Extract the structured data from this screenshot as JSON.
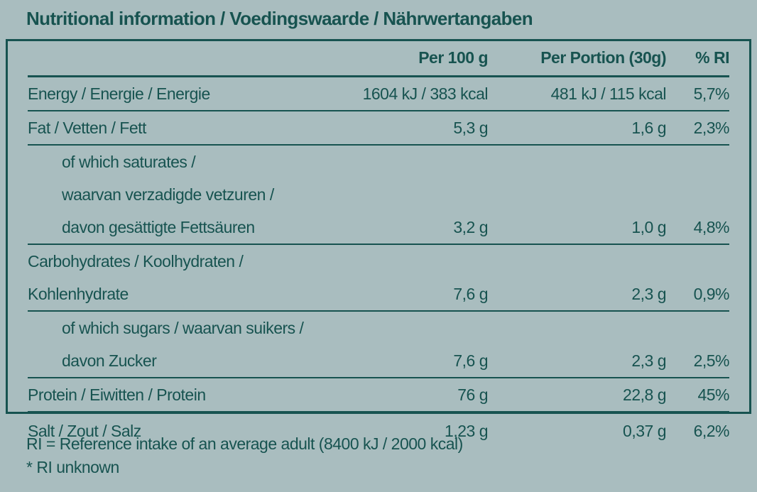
{
  "colors": {
    "background": "#a9bdbf",
    "ink": "#175350"
  },
  "title": "Nutritional information / Voedingswaarde / Nährwertangaben",
  "table": {
    "headers": {
      "per100": "Per 100 g",
      "portion": "Per Portion (30g)",
      "ri": "% RI"
    },
    "rows": [
      {
        "label_lines": [
          "Energy / Energie / Energie"
        ],
        "per100": "1604 kJ / 383 kcal",
        "portion": "481 kJ / 115 kcal",
        "ri": "5,7%"
      },
      {
        "label_lines": [
          "Fat / Vetten / Fett"
        ],
        "per100": "5,3 g",
        "portion": "1,6 g",
        "ri": "2,3%"
      },
      {
        "label_lines": [
          "of which saturates /",
          "waarvan verzadigde vetzuren /",
          "davon gesättigte Fettsäuren"
        ],
        "per100": "3,2 g",
        "portion": "1,0 g",
        "ri": "4,8%"
      },
      {
        "label_lines": [
          "Carbohydrates / Koolhydraten / Kohlenhydrate"
        ],
        "per100": "7,6 g",
        "portion": "2,3 g",
        "ri": "0,9%"
      },
      {
        "label_lines": [
          "of which sugars / waarvan suikers /",
          "davon Zucker"
        ],
        "per100": "7,6 g",
        "portion": "2,3 g",
        "ri": "2,5%"
      },
      {
        "label_lines": [
          "Protein / Eiwitten / Protein"
        ],
        "per100": "76 g",
        "portion": "22,8 g",
        "ri": "45%"
      },
      {
        "label_lines": [
          "Salt / Zout / Salz"
        ],
        "per100": "1,23 g",
        "portion": "0,37 g",
        "ri": "6,2%"
      }
    ]
  },
  "footnotes": {
    "reference_intake": "RI = Reference intake of an average adult (8400 kJ / 2000 kcal)",
    "ri_unknown": "* RI unknown"
  }
}
